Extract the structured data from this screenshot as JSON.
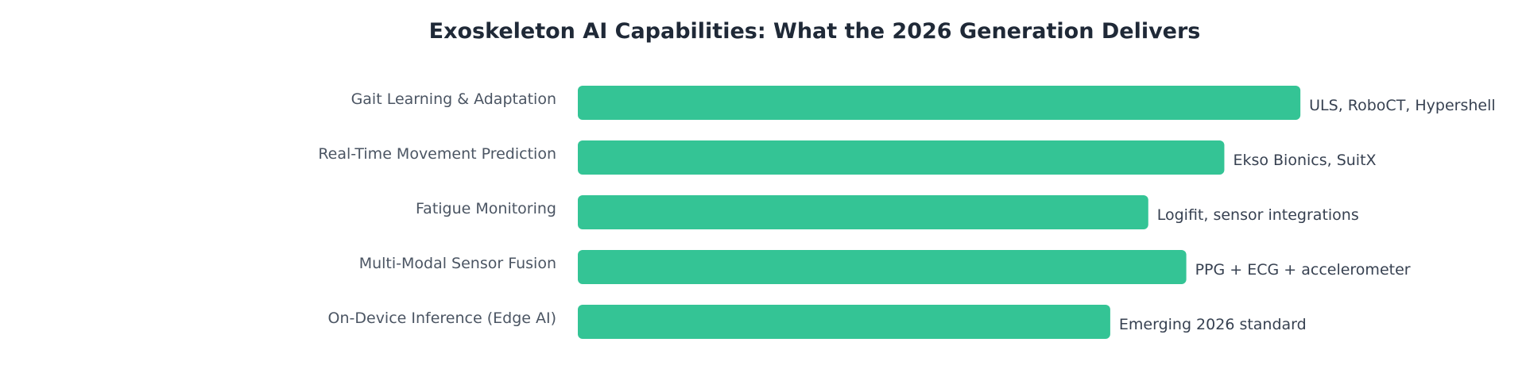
{
  "chart_data": {
    "type": "bar",
    "orientation": "horizontal",
    "title": "Exoskeleton AI Capabilities: What the 2026 Generation Delivers",
    "xlabel": "",
    "ylabel": "",
    "grid": false,
    "legend": "none",
    "bar_color": "#34c495",
    "categories": [
      "Gait Learning & Adaptation",
      "Real-Time Movement Prediction",
      "Fatigue Monitoring",
      "Multi-Modal Sensor Fusion",
      "On-Device Inference (Edge AI)"
    ],
    "values": [
      95,
      85,
      75,
      80,
      70
    ],
    "xlim": [
      0,
      100
    ],
    "annotations": [
      "ULS, RoboCT, Hypershell",
      "Ekso Bionics, SuitX",
      "Logifit, sensor integrations",
      "PPG + ECG + accelerometer",
      "Emerging 2026 standard"
    ]
  }
}
